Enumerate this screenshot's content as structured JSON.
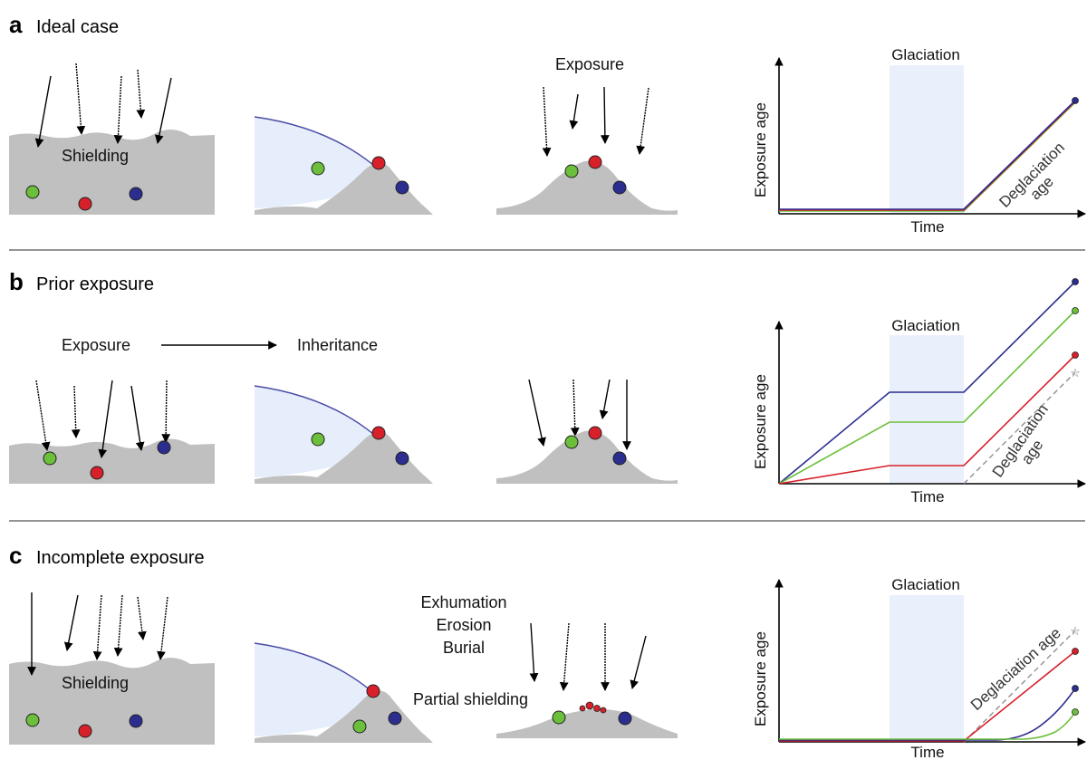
{
  "panels": {
    "a": {
      "letter": "a",
      "title": "Ideal case"
    },
    "b": {
      "letter": "b",
      "title": "Prior exposure"
    },
    "c": {
      "letter": "c",
      "title": "Incomplete exposure"
    }
  },
  "labels": {
    "shielding": "Shielding",
    "exposure": "Exposure",
    "inheritance": "Inheritance",
    "exhumation": "Exhumation",
    "erosion": "Erosion",
    "burial": "Burial",
    "partial_shielding": "Partial shielding"
  },
  "chart": {
    "glaciation": "Glaciation",
    "ylabel": "Exposure age",
    "xlabel": "Time",
    "deglaciation_line1": "Deglaciation",
    "deglaciation_line2": "age",
    "deglaciation_single": "Deglaciation age"
  },
  "colors": {
    "green": "#6bbf3a",
    "red": "#d8202a",
    "blue": "#2b2d8f",
    "ground": "#c0c0c0",
    "ice": "#e6eefb",
    "ice_edge": "#4b4aa5",
    "glaciation_band": "#eaf0fb",
    "dashed": "#888888"
  }
}
